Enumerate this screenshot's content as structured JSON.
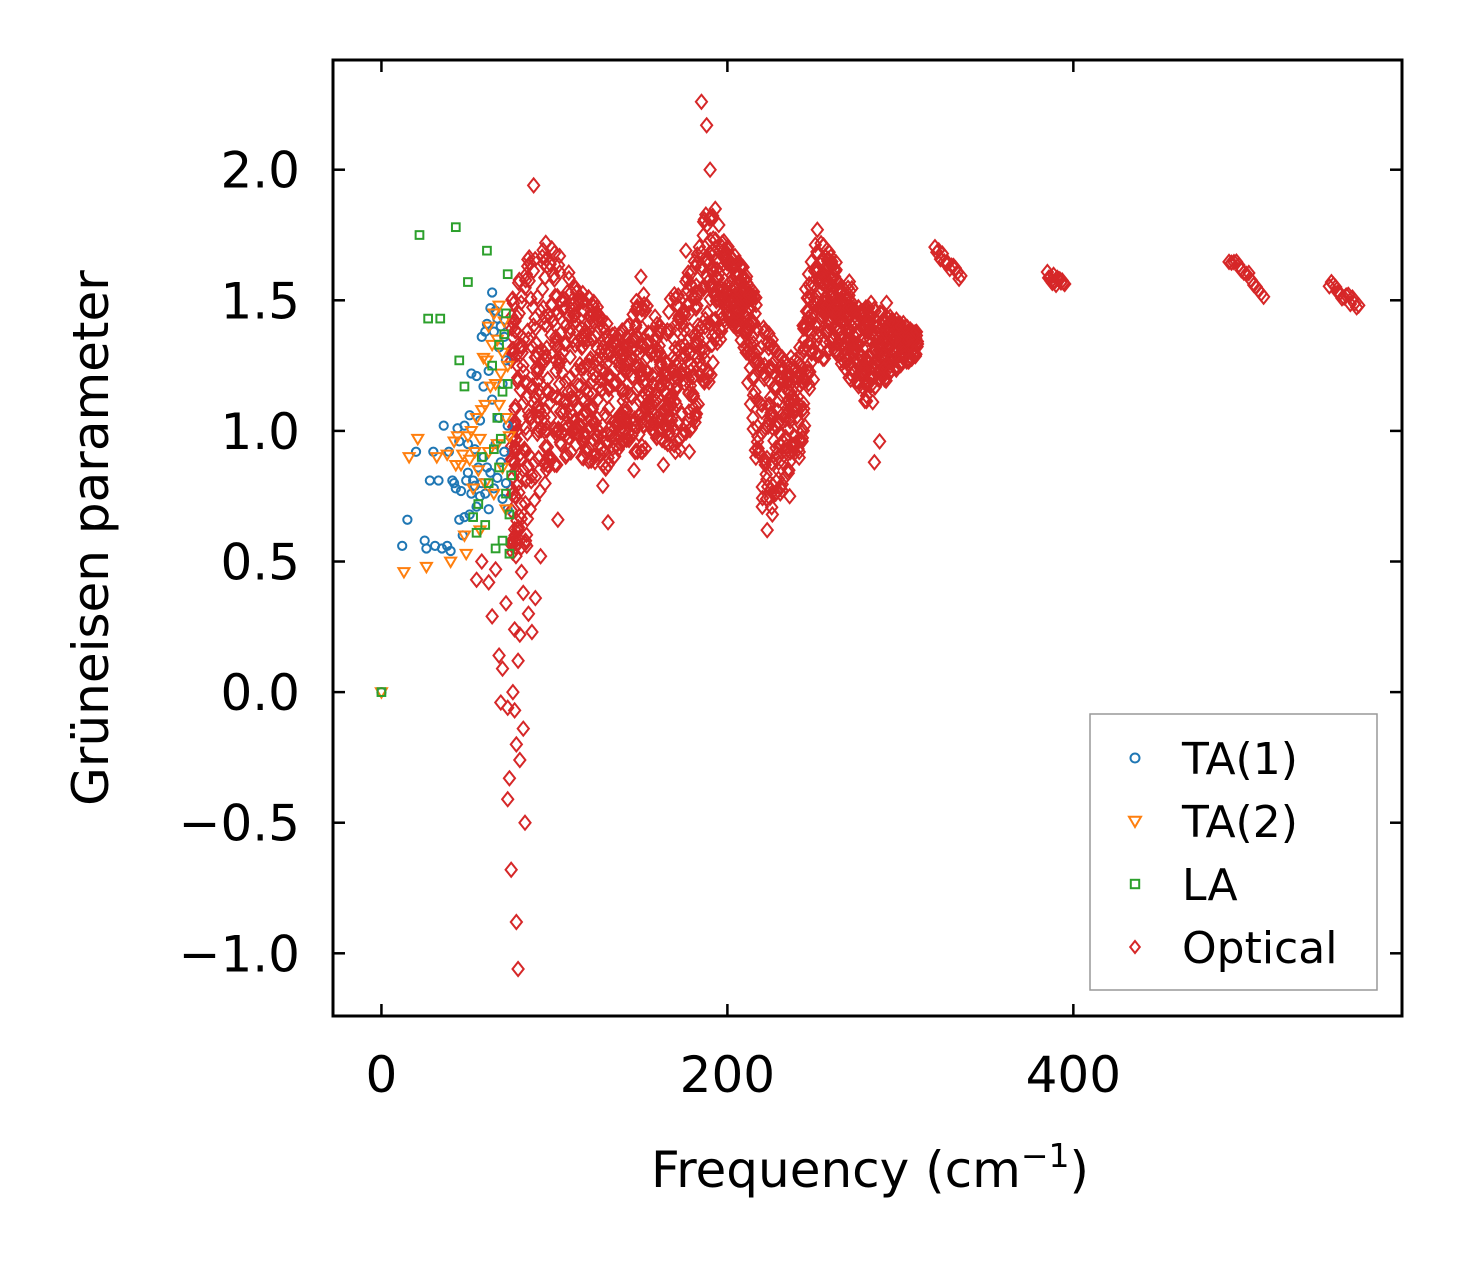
{
  "chart_data": {
    "type": "scatter",
    "title": "",
    "xlabel": "Frequency (cm",
    "xlabel_sup": "−1",
    "xlabel_tail": ")",
    "ylabel": "Grüneisen parameter",
    "xlim": [
      -28,
      590
    ],
    "ylim": [
      -1.24,
      2.42
    ],
    "x_ticks": [
      0,
      200,
      400
    ],
    "x_tick_labels": [
      "0",
      "200",
      "400"
    ],
    "y_ticks": [
      -1.0,
      -0.5,
      0.0,
      0.5,
      1.0,
      1.5,
      2.0
    ],
    "y_tick_labels": [
      "−1.0",
      "−0.5",
      "0.0",
      "0.5",
      "1.0",
      "1.5",
      "2.0"
    ],
    "grid": false,
    "legend_position": "lower-right",
    "series": [
      {
        "name": "TA(1)",
        "marker": "circle",
        "color": "#1f77b4",
        "points": [
          [
            0,
            0
          ],
          [
            12,
            0.56
          ],
          [
            15,
            0.66
          ],
          [
            20,
            0.92
          ],
          [
            25,
            0.58
          ],
          [
            26,
            0.55
          ],
          [
            28,
            0.81
          ],
          [
            30,
            0.92
          ],
          [
            31,
            0.56
          ],
          [
            33,
            0.81
          ],
          [
            35,
            0.55
          ],
          [
            36,
            1.02
          ],
          [
            38,
            0.56
          ],
          [
            39,
            0.92
          ],
          [
            40,
            0.54
          ],
          [
            41,
            0.81
          ],
          [
            42,
            0.8
          ],
          [
            43,
            0.78
          ],
          [
            44,
            1.01
          ],
          [
            45,
            0.66
          ],
          [
            45,
            0.96
          ],
          [
            46,
            0.77
          ],
          [
            47,
            0.6
          ],
          [
            48,
            1.02
          ],
          [
            48,
            0.67
          ],
          [
            49,
            0.81
          ],
          [
            50,
            0.84
          ],
          [
            50,
            0.95
          ],
          [
            51,
            1.06
          ],
          [
            51,
            0.68
          ],
          [
            52,
            1.22
          ],
          [
            52,
            0.76
          ],
          [
            53,
            0.81
          ],
          [
            54,
            0.93
          ],
          [
            54,
            0.79
          ],
          [
            55,
            1.21
          ],
          [
            55,
            0.71
          ],
          [
            56,
            0.86
          ],
          [
            57,
            1.04
          ],
          [
            57,
            0.75
          ],
          [
            58,
            1.36
          ],
          [
            58,
            0.8
          ],
          [
            59,
            1.17
          ],
          [
            59,
            0.9
          ],
          [
            60,
            1.38
          ],
          [
            60,
            0.76
          ],
          [
            61,
            1.41
          ],
          [
            61,
            0.86
          ],
          [
            62,
            1.23
          ],
          [
            62,
            0.7
          ],
          [
            63,
            1.47
          ],
          [
            63,
            0.84
          ],
          [
            64,
            1.53
          ],
          [
            64,
            1.12
          ],
          [
            65,
            1.38
          ],
          [
            65,
            0.78
          ],
          [
            66,
            1.46
          ],
          [
            66,
            0.95
          ],
          [
            67,
            1.43
          ],
          [
            67,
            0.82
          ],
          [
            68,
            1.32
          ],
          [
            68,
            1.05
          ],
          [
            69,
            1.4
          ],
          [
            69,
            0.88
          ],
          [
            70,
            1.18
          ],
          [
            70,
            0.74
          ],
          [
            71,
            1.36
          ],
          [
            71,
            0.92
          ],
          [
            72,
            1.27
          ],
          [
            72,
            0.8
          ],
          [
            73,
            1.02
          ],
          [
            73,
            0.7
          ]
        ]
      },
      {
        "name": "TA(2)",
        "marker": "triangle-down",
        "color": "#ff7f0e",
        "points": [
          [
            0,
            0
          ],
          [
            13,
            0.46
          ],
          [
            16,
            0.9
          ],
          [
            21,
            0.97
          ],
          [
            26,
            0.48
          ],
          [
            32,
            0.9
          ],
          [
            38,
            0.91
          ],
          [
            40,
            0.5
          ],
          [
            42,
            0.96
          ],
          [
            43,
            0.87
          ],
          [
            44,
            0.98
          ],
          [
            46,
            0.87
          ],
          [
            47,
            0.91
          ],
          [
            48,
            0.6
          ],
          [
            49,
            0.53
          ],
          [
            50,
            0.98
          ],
          [
            51,
            0.89
          ],
          [
            52,
            1.0
          ],
          [
            53,
            0.78
          ],
          [
            54,
            0.92
          ],
          [
            55,
            1.05
          ],
          [
            56,
            0.85
          ],
          [
            57,
            0.97
          ],
          [
            57,
            0.62
          ],
          [
            58,
            1.08
          ],
          [
            59,
            1.28
          ],
          [
            60,
            0.8
          ],
          [
            60,
            1.1
          ],
          [
            61,
            1.27
          ],
          [
            62,
            1.4
          ],
          [
            62,
            0.92
          ],
          [
            63,
            1.17
          ],
          [
            64,
            1.33
          ],
          [
            65,
            1.45
          ],
          [
            65,
            0.76
          ],
          [
            66,
            1.18
          ],
          [
            67,
            1.35
          ],
          [
            67,
            0.95
          ],
          [
            68,
            1.48
          ],
          [
            68,
            1.1
          ],
          [
            69,
            1.22
          ],
          [
            70,
            1.3
          ],
          [
            70,
            0.86
          ],
          [
            71,
            1.42
          ],
          [
            72,
            1.05
          ],
          [
            72,
            0.7
          ],
          [
            73,
            1.25
          ],
          [
            74,
            0.98
          ]
        ]
      },
      {
        "name": "LA",
        "marker": "square",
        "color": "#2ca02c",
        "points": [
          [
            0,
            0
          ],
          [
            22,
            1.75
          ],
          [
            27,
            1.43
          ],
          [
            34,
            1.43
          ],
          [
            43,
            1.78
          ],
          [
            45,
            1.27
          ],
          [
            48,
            1.17
          ],
          [
            50,
            1.57
          ],
          [
            53,
            0.67
          ],
          [
            55,
            0.61
          ],
          [
            56,
            0.72
          ],
          [
            58,
            0.9
          ],
          [
            60,
            0.64
          ],
          [
            61,
            1.69
          ],
          [
            62,
            0.8
          ],
          [
            64,
            1.25
          ],
          [
            65,
            0.93
          ],
          [
            66,
            0.55
          ],
          [
            67,
            1.05
          ],
          [
            68,
            0.86
          ],
          [
            68,
            1.33
          ],
          [
            69,
            0.97
          ],
          [
            70,
            1.15
          ],
          [
            70,
            0.58
          ],
          [
            71,
            1.37
          ],
          [
            72,
            0.76
          ],
          [
            72,
            1.45
          ],
          [
            73,
            1.6
          ],
          [
            73,
            1.18
          ],
          [
            74,
            0.53
          ],
          [
            74,
            0.68
          ],
          [
            75,
            0.83
          ]
        ]
      },
      {
        "name": "Optical",
        "marker": "diamond",
        "color": "#d62728",
        "points": [
          [
            55,
            0.43
          ],
          [
            58,
            0.5
          ],
          [
            62,
            0.42
          ],
          [
            64,
            0.29
          ],
          [
            66,
            0.47
          ],
          [
            68,
            0.14
          ],
          [
            70,
            0.09
          ],
          [
            69,
            -0.04
          ],
          [
            72,
            0.34
          ],
          [
            73,
            -0.06
          ],
          [
            74,
            -0.33
          ],
          [
            73,
            -0.41
          ],
          [
            75,
            -0.68
          ],
          [
            76,
            -0.0
          ],
          [
            77,
            0.24
          ],
          [
            77,
            -0.07
          ],
          [
            78,
            -0.88
          ],
          [
            78,
            -0.2
          ],
          [
            79,
            -1.06
          ],
          [
            79,
            0.12
          ],
          [
            80,
            -0.26
          ],
          [
            80,
            0.22
          ],
          [
            81,
            0.46
          ],
          [
            82,
            -0.14
          ],
          [
            82,
            0.38
          ],
          [
            83,
            -0.5
          ],
          [
            84,
            0.56
          ],
          [
            85,
            0.3
          ],
          [
            86,
            0.7
          ],
          [
            87,
            0.23
          ],
          [
            88,
            1.94
          ],
          [
            89,
            0.36
          ],
          [
            90,
            1.3
          ],
          [
            92,
            0.52
          ],
          [
            95,
            1.72
          ],
          [
            98,
            0.89
          ],
          [
            100,
            1.58
          ],
          [
            102,
            0.66
          ],
          [
            105,
            1.3
          ],
          [
            108,
            1.02
          ],
          [
            112,
            1.55
          ],
          [
            118,
            0.92
          ],
          [
            122,
            1.48
          ],
          [
            128,
            0.79
          ],
          [
            131,
            0.65
          ],
          [
            135,
            1.18
          ],
          [
            140,
            1.38
          ],
          [
            146,
            0.85
          ],
          [
            150,
            1.59
          ],
          [
            153,
            1.1
          ],
          [
            160,
            1.38
          ],
          [
            163,
            0.87
          ],
          [
            170,
            1.27
          ],
          [
            176,
            1.69
          ],
          [
            178,
            0.92
          ],
          [
            182,
            1.48
          ],
          [
            185,
            2.26
          ],
          [
            188,
            2.17
          ],
          [
            190,
            2.0
          ],
          [
            193,
            1.85
          ],
          [
            197,
            1.72
          ],
          [
            202,
            1.63
          ],
          [
            208,
            1.57
          ],
          [
            214,
            1.42
          ],
          [
            220,
            1.1
          ],
          [
            223,
            0.62
          ],
          [
            226,
            0.68
          ],
          [
            230,
            1.2
          ],
          [
            236,
            0.75
          ],
          [
            240,
            1.08
          ],
          [
            246,
            1.4
          ],
          [
            252,
            1.77
          ],
          [
            258,
            1.65
          ],
          [
            264,
            1.57
          ],
          [
            270,
            1.47
          ],
          [
            276,
            1.33
          ],
          [
            280,
            1.38
          ],
          [
            284,
            1.11
          ],
          [
            285,
            0.88
          ],
          [
            288,
            0.96
          ],
          [
            292,
            1.49
          ],
          [
            297,
            1.35
          ],
          [
            303,
            1.4
          ],
          [
            308,
            1.3
          ]
        ]
      }
    ]
  },
  "legend": {
    "items": [
      {
        "label": "TA(1)",
        "marker": "circle",
        "color": "#1f77b4"
      },
      {
        "label": "TA(2)",
        "marker": "triangle-down",
        "color": "#ff7f0e"
      },
      {
        "label": "LA",
        "marker": "square",
        "color": "#2ca02c"
      },
      {
        "label": "Optical",
        "marker": "diamond",
        "color": "#d62728"
      }
    ]
  }
}
